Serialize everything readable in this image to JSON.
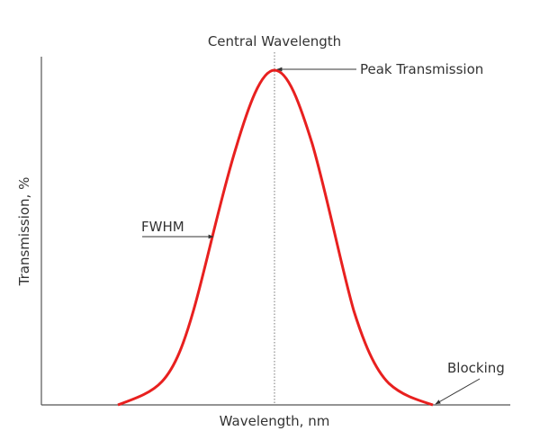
{
  "title": "Central Wavelength",
  "x_axis_label": "Wavelength, nm",
  "y_axis_label": "Transmission, %",
  "annotations": {
    "peak": "Peak Transmission",
    "fwhm": "FWHM",
    "blocking": "Blocking"
  },
  "colors": {
    "curve": "#e8201f",
    "axes": "#555555",
    "text": "#333333"
  }
}
